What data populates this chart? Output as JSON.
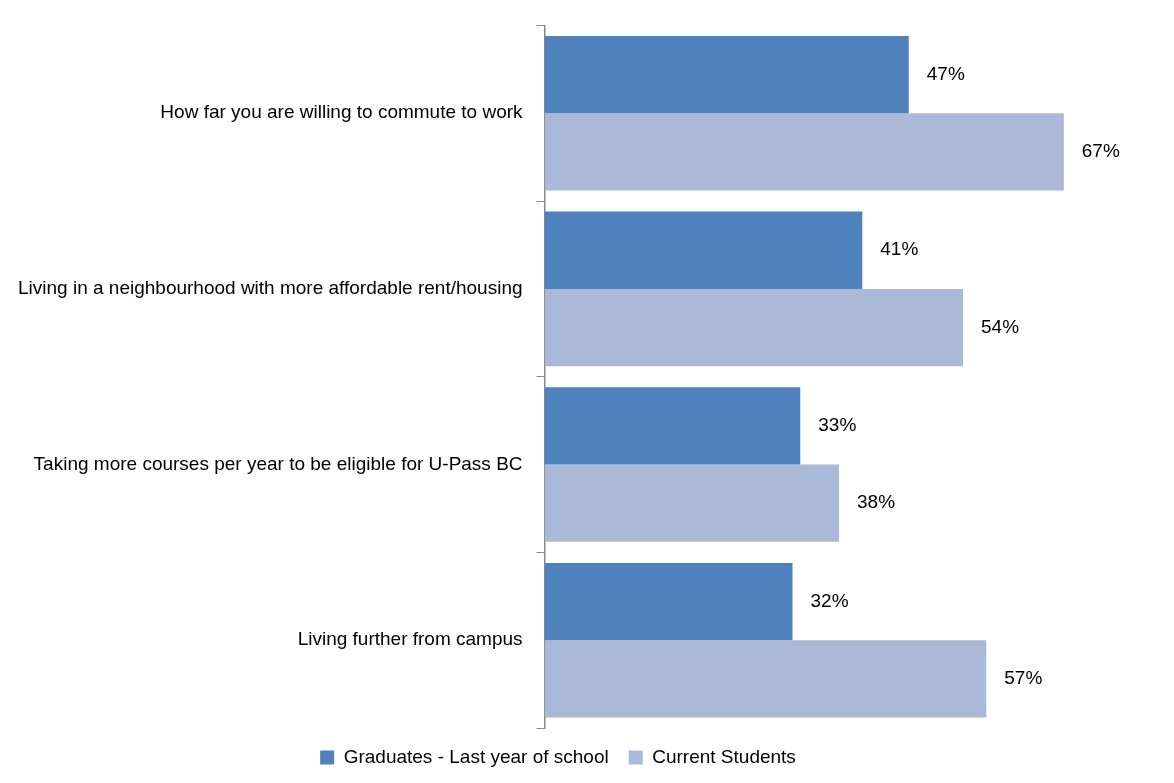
{
  "chart_data": {
    "type": "bar",
    "orientation": "horizontal",
    "categories": [
      "How far you are willing to commute to work",
      "Living in a neighbourhood with more affordable rent/housing",
      "Taking more courses per year to be eligible for U-Pass BC",
      "Living further from campus"
    ],
    "series": [
      {
        "name": "Graduates - Last year of school",
        "color": "#4f81bd",
        "values": [
          47,
          41,
          33,
          32
        ],
        "value_labels": [
          "47%",
          "41%",
          "33%",
          "32%"
        ]
      },
      {
        "name": "Current Students",
        "color": "#aab9d8",
        "values": [
          67,
          54,
          38,
          57
        ],
        "value_labels": [
          "67%",
          "54%",
          "38%",
          "57%"
        ]
      }
    ],
    "legend": "bottom"
  }
}
